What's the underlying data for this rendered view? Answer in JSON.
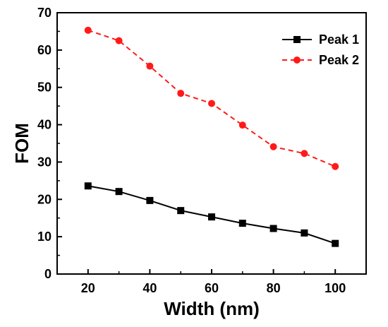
{
  "chart_data": {
    "type": "line",
    "xlabel": "Width (nm)",
    "ylabel": "FOM",
    "xlim": [
      10,
      110
    ],
    "ylim": [
      0,
      70
    ],
    "xticks": [
      20,
      40,
      60,
      80,
      100
    ],
    "yticks": [
      0,
      10,
      20,
      30,
      40,
      50,
      60,
      70
    ],
    "legend_position": "top-right",
    "grid": false,
    "x": [
      20,
      30,
      40,
      50,
      60,
      70,
      80,
      90,
      100
    ],
    "series": [
      {
        "name": "Peak 1",
        "values": [
          23.6,
          22.1,
          19.7,
          17.0,
          15.3,
          13.6,
          12.2,
          11.0,
          8.2
        ],
        "color": "#000000",
        "marker": "square",
        "line_style": "solid"
      },
      {
        "name": "Peak 2",
        "values": [
          65.3,
          62.5,
          55.7,
          48.4,
          45.7,
          39.9,
          34.1,
          32.3,
          28.8
        ],
        "color": "#ff1a1a",
        "marker": "circle",
        "line_style": "dashed"
      }
    ]
  }
}
